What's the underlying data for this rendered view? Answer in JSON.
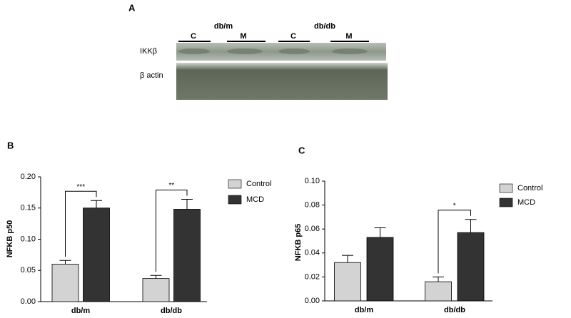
{
  "blot": {
    "panel": "A",
    "groups": [
      "db/m",
      "db/db"
    ],
    "lanes": [
      "C",
      "M",
      "C",
      "M"
    ],
    "rows": [
      "IKKβ",
      "β actin"
    ]
  },
  "chart_data": [
    {
      "type": "bar",
      "panel": "B",
      "ylabel": "NFKB p50",
      "categories": [
        "db/m",
        "db/db"
      ],
      "series": [
        {
          "name": "Control",
          "color": "#d3d3d3",
          "values": [
            0.06,
            0.037
          ],
          "errors": [
            0.006,
            0.005
          ]
        },
        {
          "name": "MCD",
          "color": "#333333",
          "values": [
            0.15,
            0.148
          ],
          "errors": [
            0.012,
            0.016
          ]
        }
      ],
      "annotations": [
        "***",
        "**"
      ],
      "ylim": [
        0,
        0.2
      ],
      "yticks": [
        {
          "value": 0,
          "label": "0.00"
        },
        {
          "value": 0.05,
          "label": "0.05"
        },
        {
          "value": 0.1,
          "label": "0.10"
        },
        {
          "value": 0.15,
          "label": "0.15"
        },
        {
          "value": 0.2,
          "label": "0.20"
        }
      ]
    },
    {
      "type": "bar",
      "panel": "C",
      "ylabel": "NFKB p65",
      "categories": [
        "db/m",
        "db/db"
      ],
      "series": [
        {
          "name": "Control",
          "color": "#d3d3d3",
          "values": [
            0.032,
            0.016
          ],
          "errors": [
            0.006,
            0.004
          ]
        },
        {
          "name": "MCD",
          "color": "#333333",
          "values": [
            0.053,
            0.057
          ],
          "errors": [
            0.008,
            0.011
          ]
        }
      ],
      "annotations": [
        null,
        "*"
      ],
      "ylim": [
        0,
        0.1
      ],
      "yticks": [
        {
          "value": 0,
          "label": "0.00"
        },
        {
          "value": 0.02,
          "label": "0.02"
        },
        {
          "value": 0.04,
          "label": "0.04"
        },
        {
          "value": 0.06,
          "label": "0.06"
        },
        {
          "value": 0.08,
          "label": "0.08"
        },
        {
          "value": 0.1,
          "label": "0.10"
        }
      ]
    }
  ]
}
